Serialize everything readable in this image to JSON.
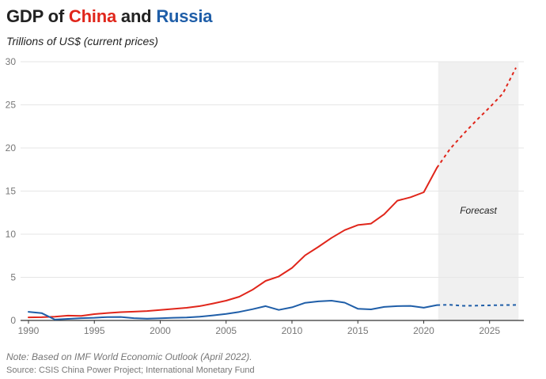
{
  "header": {
    "title_prefix": "GDP of ",
    "title_china": "China",
    "title_and": " and ",
    "title_russia": "Russia",
    "subtitle": "Trillions of US$ (current prices)"
  },
  "footer": {
    "note": "Note: Based on IMF World Economic Outlook (April 2022).",
    "source": "Source: CSIS China Power Project; International Monetary Fund"
  },
  "colors": {
    "china": "#e0261b",
    "russia": "#1f5ea8",
    "forecast_band": "#f0f0f0",
    "grid": "#e6e6e6",
    "axis": "#333333"
  },
  "chart_data": {
    "type": "line",
    "title": "GDP of China and Russia",
    "ylabel": "Trillions of US$ (current prices)",
    "xlabel": "",
    "xlim": [
      1989.4,
      2027.6
    ],
    "ylim": [
      0,
      30
    ],
    "x_ticks": [
      1990,
      1995,
      2000,
      2005,
      2010,
      2015,
      2020,
      2025
    ],
    "y_ticks": [
      0,
      5,
      10,
      15,
      20,
      25,
      30
    ],
    "grid": "horizontal",
    "legend": "none (series named in title colors)",
    "forecast_region": {
      "label": "Forecast",
      "from": 2021.1,
      "to": 2027.2
    },
    "x": [
      1990,
      1991,
      1992,
      1993,
      1994,
      1995,
      1996,
      1997,
      1998,
      1999,
      2000,
      2001,
      2002,
      2003,
      2004,
      2005,
      2006,
      2007,
      2008,
      2009,
      2010,
      2011,
      2012,
      2013,
      2014,
      2015,
      2016,
      2017,
      2018,
      2019,
      2020,
      2021,
      2022,
      2023,
      2024,
      2025,
      2026,
      2027
    ],
    "series": [
      {
        "name": "China",
        "color": "#e0261b",
        "values": [
          0.36,
          0.38,
          0.43,
          0.56,
          0.53,
          0.73,
          0.86,
          0.96,
          1.02,
          1.09,
          1.21,
          1.34,
          1.47,
          1.66,
          1.96,
          2.29,
          2.75,
          3.55,
          4.59,
          5.1,
          6.09,
          7.55,
          8.53,
          9.57,
          10.48,
          11.06,
          11.23,
          12.31,
          13.89,
          14.28,
          14.86,
          17.7,
          19.9,
          21.6,
          23.2,
          24.7,
          26.3,
          29.3
        ],
        "actual_until": 2021,
        "forecast_from": 2021
      },
      {
        "name": "Russia",
        "color": "#1f5ea8",
        "values": [
          1.0,
          0.85,
          0.1,
          0.18,
          0.27,
          0.31,
          0.39,
          0.4,
          0.27,
          0.2,
          0.26,
          0.31,
          0.35,
          0.43,
          0.59,
          0.76,
          0.99,
          1.3,
          1.66,
          1.22,
          1.52,
          2.05,
          2.21,
          2.29,
          2.06,
          1.36,
          1.28,
          1.57,
          1.66,
          1.69,
          1.48,
          1.78,
          1.82,
          1.7,
          1.72,
          1.75,
          1.78,
          1.8
        ],
        "actual_until": 2021,
        "forecast_from": 2021
      }
    ]
  }
}
